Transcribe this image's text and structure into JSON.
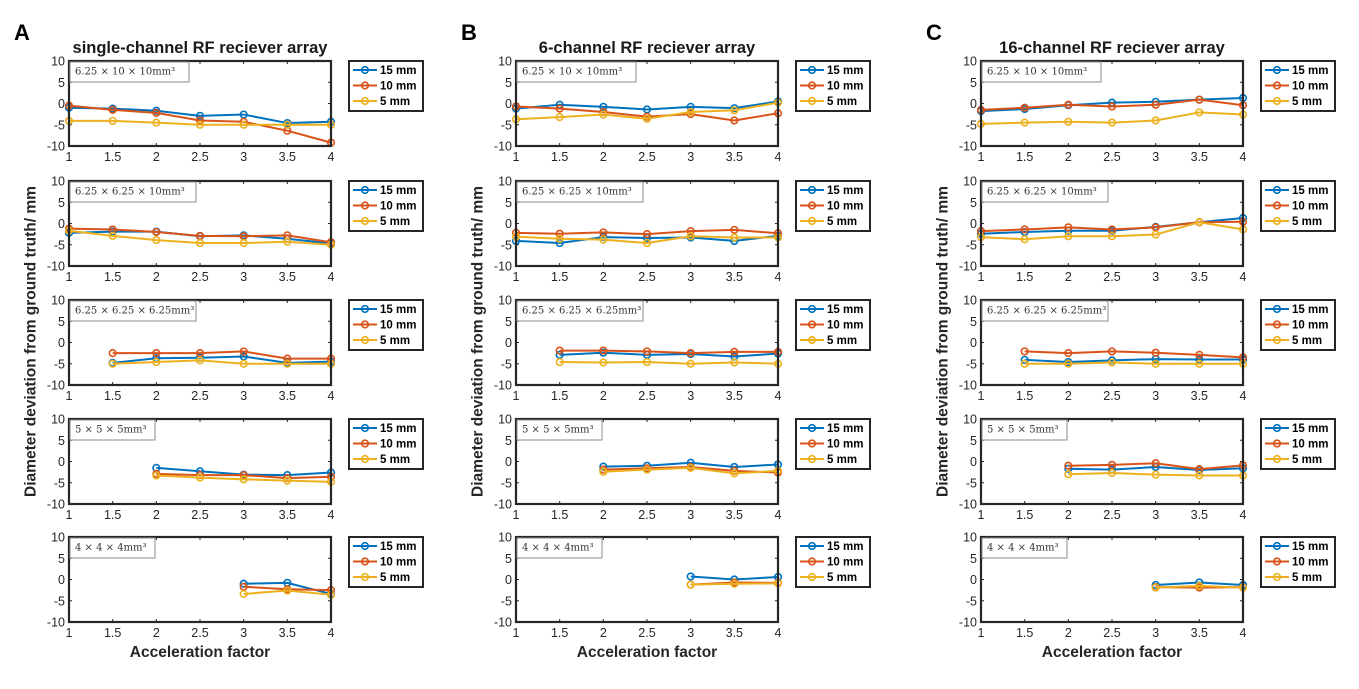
{
  "chart_data": {
    "type": "line",
    "figure_ylabel": "Diameter deviation from ground truth/ mm",
    "xlabel": "Acceleration factor",
    "x_ticks": [
      "1",
      "1.5",
      "2",
      "2.5",
      "3",
      "3.5",
      "4"
    ],
    "y_ticks": [
      "10",
      "5",
      "0",
      "-5",
      "-10"
    ],
    "xlim": [
      1,
      4
    ],
    "ylim": [
      -10,
      10
    ],
    "grid": false,
    "legend_placement": "outside-right",
    "series_names": [
      "15 mm",
      "10 mm",
      "5 mm"
    ],
    "series_colors": [
      "#0072BD",
      "#D95319",
      "#EDB120"
    ],
    "panels": [
      {
        "letter": "A",
        "title": "single-channel RF reciever array",
        "subplots": [
          {
            "annotation": "6.25 × 10 × 10mm³",
            "x": [
              1,
              1.5,
              2,
              2.5,
              3,
              3.5,
              4
            ],
            "series": [
              {
                "name": "15 mm",
                "values": [
                  -1.0,
                  -1.2,
                  -1.7,
                  -2.9,
                  -2.6,
                  -4.6,
                  -4.3
                ]
              },
              {
                "name": "10 mm",
                "values": [
                  -0.5,
                  -1.5,
                  -2.2,
                  -4.0,
                  -4.3,
                  -6.4,
                  -9.2
                ]
              },
              {
                "name": "5 mm",
                "values": [
                  -4.1,
                  -4.1,
                  -4.5,
                  -5.0,
                  -5.0,
                  -5.0,
                  -5.0
                ]
              }
            ]
          },
          {
            "annotation": "6.25 × 6.25 × 10mm³",
            "x": [
              1,
              1.5,
              2,
              2.5,
              3,
              3.5,
              4
            ],
            "series": [
              {
                "name": "15 mm",
                "values": [
                  -2.2,
                  -1.9,
                  -1.9,
                  -3.0,
                  -2.8,
                  -3.6,
                  -4.7
                ]
              },
              {
                "name": "10 mm",
                "values": [
                  -1.2,
                  -1.4,
                  -2.0,
                  -2.9,
                  -3.0,
                  -2.8,
                  -4.4
                ]
              },
              {
                "name": "5 mm",
                "values": [
                  -1.7,
                  -2.9,
                  -3.9,
                  -4.6,
                  -4.6,
                  -4.3,
                  -5.0
                ]
              }
            ]
          },
          {
            "annotation": "6.25 × 6.25 × 6.25mm³",
            "x": [
              1.5,
              2,
              2.5,
              3,
              3.5,
              4
            ],
            "series": [
              {
                "name": "15 mm",
                "values": [
                  -4.8,
                  -3.7,
                  -3.6,
                  -3.3,
                  -4.8,
                  -4.5
                ]
              },
              {
                "name": "10 mm",
                "values": [
                  -2.5,
                  -2.5,
                  -2.5,
                  -2.1,
                  -3.8,
                  -3.8
                ]
              },
              {
                "name": "5 mm",
                "values": [
                  -5.0,
                  -4.6,
                  -4.2,
                  -5.0,
                  -5.0,
                  -5.0
                ]
              }
            ]
          },
          {
            "annotation": "5 × 5 × 5mm³",
            "x": [
              2,
              2.5,
              3,
              3.5,
              4
            ],
            "series": [
              {
                "name": "15 mm",
                "values": [
                  -1.5,
                  -2.3,
                  -3.1,
                  -3.2,
                  -2.6
                ]
              },
              {
                "name": "10 mm",
                "values": [
                  -2.9,
                  -3.2,
                  -3.2,
                  -3.9,
                  -3.6
                ]
              },
              {
                "name": "5 mm",
                "values": [
                  -3.3,
                  -3.8,
                  -4.2,
                  -4.5,
                  -4.8
                ]
              }
            ]
          },
          {
            "annotation": "4 × 4 × 4mm³",
            "x": [
              3,
              3.5,
              4
            ],
            "series": [
              {
                "name": "15 mm",
                "values": [
                  -1.0,
                  -0.8,
                  -3.4
                ]
              },
              {
                "name": "10 mm",
                "values": [
                  -1.7,
                  -2.3,
                  -2.5
                ]
              },
              {
                "name": "5 mm",
                "values": [
                  -3.4,
                  -2.6,
                  -3.6
                ]
              }
            ]
          }
        ]
      },
      {
        "letter": "B",
        "title": "6-channel RF reciever array",
        "subplots": [
          {
            "annotation": "6.25 × 10 × 10mm³",
            "x": [
              1,
              1.5,
              2,
              2.5,
              3,
              3.5,
              4
            ],
            "series": [
              {
                "name": "15 mm",
                "values": [
                  -1.2,
                  -0.3,
                  -0.8,
                  -1.4,
                  -0.8,
                  -1.1,
                  0.5
                ]
              },
              {
                "name": "10 mm",
                "values": [
                  -0.7,
                  -1.2,
                  -2.0,
                  -3.1,
                  -2.5,
                  -4.0,
                  -2.3
                ]
              },
              {
                "name": "5 mm",
                "values": [
                  -3.7,
                  -3.2,
                  -2.6,
                  -3.6,
                  -2.0,
                  -1.6,
                  0.2
                ]
              }
            ]
          },
          {
            "annotation": "6.25 × 6.25 × 10mm³",
            "x": [
              1,
              1.5,
              2,
              2.5,
              3,
              3.5,
              4
            ],
            "series": [
              {
                "name": "15 mm",
                "values": [
                  -4.1,
                  -4.6,
                  -3.2,
                  -3.4,
                  -3.3,
                  -4.1,
                  -2.9
                ]
              },
              {
                "name": "10 mm",
                "values": [
                  -2.2,
                  -2.4,
                  -2.1,
                  -2.5,
                  -1.8,
                  -1.5,
                  -2.3
                ]
              },
              {
                "name": "5 mm",
                "values": [
                  -3.1,
                  -3.6,
                  -3.8,
                  -4.6,
                  -3.0,
                  -3.3,
                  -3.3
                ]
              }
            ]
          },
          {
            "annotation": "6.25 × 6.25 × 6.25mm³",
            "x": [
              1.5,
              2,
              2.5,
              3,
              3.5,
              4
            ],
            "series": [
              {
                "name": "15 mm",
                "values": [
                  -2.9,
                  -2.4,
                  -2.9,
                  -2.7,
                  -3.3,
                  -2.6
                ]
              },
              {
                "name": "10 mm",
                "values": [
                  -1.9,
                  -1.9,
                  -2.1,
                  -2.5,
                  -2.2,
                  -2.2
                ]
              },
              {
                "name": "5 mm",
                "values": [
                  -4.6,
                  -4.7,
                  -4.6,
                  -5.0,
                  -4.7,
                  -5.0
                ]
              }
            ]
          },
          {
            "annotation": "5 × 5 × 5mm³",
            "x": [
              2,
              2.5,
              3,
              3.5,
              4
            ],
            "series": [
              {
                "name": "15 mm",
                "values": [
                  -1.2,
                  -1.0,
                  -0.3,
                  -1.3,
                  -0.7
                ]
              },
              {
                "name": "10 mm",
                "values": [
                  -1.9,
                  -1.6,
                  -1.3,
                  -2.2,
                  -2.6
                ]
              },
              {
                "name": "5 mm",
                "values": [
                  -2.4,
                  -1.9,
                  -1.5,
                  -2.8,
                  -2.2
                ]
              }
            ]
          },
          {
            "annotation": "4 × 4 × 4mm³",
            "x": [
              3,
              3.5,
              4
            ],
            "series": [
              {
                "name": "15 mm",
                "values": [
                  0.7,
                  0.0,
                  0.6
                ]
              },
              {
                "name": "10 mm",
                "values": [
                  -1.2,
                  -0.7,
                  -0.8
                ]
              },
              {
                "name": "5 mm",
                "values": [
                  -1.2,
                  -1.0,
                  -0.9
                ]
              }
            ]
          }
        ]
      },
      {
        "letter": "C",
        "title": "16-channel RF reciever array",
        "subplots": [
          {
            "annotation": "6.25 × 10 × 10mm³",
            "x": [
              1,
              1.5,
              2,
              2.5,
              3,
              3.5,
              4
            ],
            "series": [
              {
                "name": "15 mm",
                "values": [
                  -1.8,
                  -1.3,
                  -0.4,
                  0.2,
                  0.4,
                  0.9,
                  1.3
                ]
              },
              {
                "name": "10 mm",
                "values": [
                  -1.5,
                  -1.0,
                  -0.3,
                  -0.7,
                  -0.3,
                  0.9,
                  -0.4
                ]
              },
              {
                "name": "5 mm",
                "values": [
                  -4.8,
                  -4.5,
                  -4.3,
                  -4.5,
                  -4.0,
                  -2.1,
                  -2.6
                ]
              }
            ]
          },
          {
            "annotation": "6.25 × 6.25 × 10mm³",
            "x": [
              1,
              1.5,
              2,
              2.5,
              3,
              3.5,
              4
            ],
            "series": [
              {
                "name": "15 mm",
                "values": [
                  -2.4,
                  -2.0,
                  -1.7,
                  -1.7,
                  -0.8,
                  0.3,
                  1.3
                ]
              },
              {
                "name": "10 mm",
                "values": [
                  -1.8,
                  -1.4,
                  -0.9,
                  -1.4,
                  -0.9,
                  0.3,
                  0.4
                ]
              },
              {
                "name": "5 mm",
                "values": [
                  -3.2,
                  -3.7,
                  -3.0,
                  -3.0,
                  -2.6,
                  0.3,
                  -1.4
                ]
              }
            ]
          },
          {
            "annotation": "6.25 × 6.25 × 6.25mm³",
            "x": [
              1.5,
              2,
              2.5,
              3,
              3.5,
              4
            ],
            "series": [
              {
                "name": "15 mm",
                "values": [
                  -4.1,
                  -4.6,
                  -4.2,
                  -3.9,
                  -4.0,
                  -4.0
                ]
              },
              {
                "name": "10 mm",
                "values": [
                  -2.1,
                  -2.5,
                  -2.1,
                  -2.4,
                  -2.9,
                  -3.5
                ]
              },
              {
                "name": "5 mm",
                "values": [
                  -5.0,
                  -5.0,
                  -4.7,
                  -5.0,
                  -5.0,
                  -5.0
                ]
              }
            ]
          },
          {
            "annotation": "5 × 5 × 5mm³",
            "x": [
              2,
              2.5,
              3,
              3.5,
              4
            ],
            "series": [
              {
                "name": "15 mm",
                "values": [
                  -1.7,
                  -1.9,
                  -1.3,
                  -2.0,
                  -1.6
                ]
              },
              {
                "name": "10 mm",
                "values": [
                  -1.0,
                  -0.8,
                  -0.4,
                  -1.8,
                  -0.9
                ]
              },
              {
                "name": "5 mm",
                "values": [
                  -3.0,
                  -2.7,
                  -3.1,
                  -3.3,
                  -3.3
                ]
              }
            ]
          },
          {
            "annotation": "4 × 4 × 4mm³",
            "x": [
              3,
              3.5,
              4
            ],
            "series": [
              {
                "name": "15 mm",
                "values": [
                  -1.3,
                  -0.7,
                  -1.3
                ]
              },
              {
                "name": "10 mm",
                "values": [
                  -1.8,
                  -1.9,
                  -1.8
                ]
              },
              {
                "name": "5 mm",
                "values": [
                  -1.9,
                  -1.5,
                  -1.9
                ]
              }
            ]
          }
        ]
      }
    ]
  }
}
